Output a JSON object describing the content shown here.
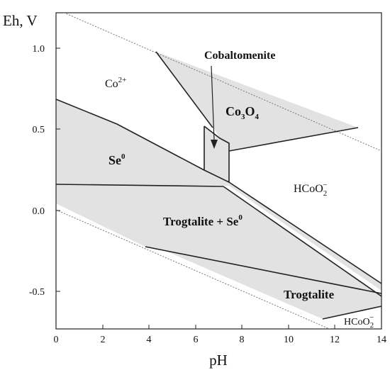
{
  "axes": {
    "x_title": "pH",
    "y_title": "Eh, V",
    "x_ticks": [
      "0",
      "2",
      "4",
      "6",
      "8",
      "10",
      "12",
      "14"
    ],
    "y_ticks": [
      "1.0",
      "0.5",
      "0.0",
      "-0.5"
    ],
    "x_range": [
      0,
      14
    ],
    "y_range": [
      -0.75,
      1.22
    ]
  },
  "labels": {
    "co2plus": {
      "base": "Co",
      "sup": "2+"
    },
    "cobaltomenite": "Cobaltomenite",
    "co3o4": {
      "a": "Co",
      "a_sub": "3",
      "b": "O",
      "b_sub": "4"
    },
    "se0": {
      "base": "Se",
      "sup": "0"
    },
    "hcoo2_upper": {
      "base": "HCoO",
      "sub": "2",
      "sup": "−"
    },
    "trogtalite_se": {
      "base": "Trogtalite + Se",
      "sup": "0"
    },
    "trogtalite": "Trogtalite",
    "hcoo2_lower": {
      "base": "HCoO",
      "sub": "2",
      "sup": "−"
    }
  },
  "colors": {
    "stable_region_fill": "#e2e2e2",
    "boundary": "#222222",
    "water_limit": "#777777"
  }
}
